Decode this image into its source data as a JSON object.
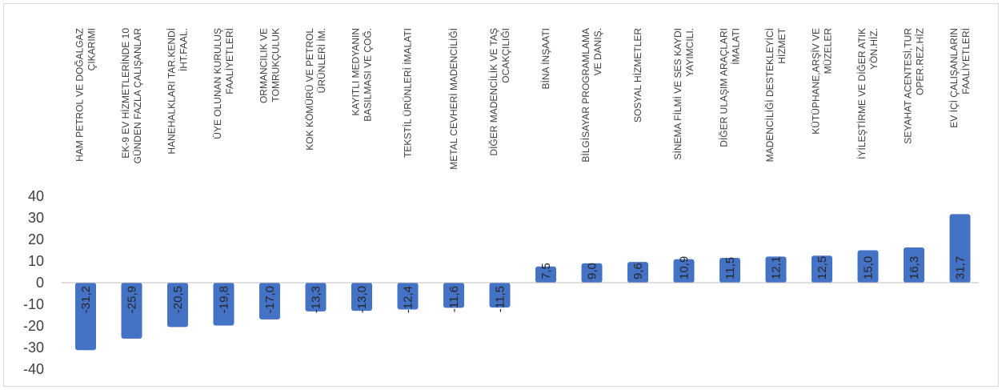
{
  "chart_data": {
    "type": "bar",
    "title": "",
    "xlabel": "",
    "ylabel": "",
    "ylim": [
      -40,
      40
    ],
    "yticks": [
      40,
      30,
      20,
      10,
      0,
      -10,
      -20,
      -30,
      -40
    ],
    "grid": false,
    "legend": "none",
    "bar_color": "#4472c4",
    "categories": [
      [
        "HAM PETROL VE DOĞALGAZ",
        "ÇIKARIMI"
      ],
      [
        "EK-9 EV HİZMETLERİNDE 10",
        "GÜNDEN FAZLA ÇALIŞANLAR"
      ],
      [
        "HANEHALKLARI TAR.KENDİ",
        "İHT.FAAL."
      ],
      [
        "ÜYE OLUNAN KURULUŞ",
        "FAALİYETLERİ"
      ],
      [
        "ORMANCILIK VE",
        "TOMRUKÇULUK"
      ],
      [
        "KOK KÖMÜRÜ VE PETROL",
        "ÜRÜNLERİ İM."
      ],
      [
        "KAYITLI MEDYANIN",
        "BASILMASI VE ÇOĞ."
      ],
      [
        "TEKSTİL ÜRÜNLERİ İMALATI"
      ],
      [
        "METAL CEVHERİ MADENCİLİĞİ"
      ],
      [
        "DİĞER MADENCİLİK VE TAŞ",
        "OCAKÇILIĞI"
      ],
      [
        "BİNA İNŞAATI"
      ],
      [
        "BİLGİSAYAR PROGRAMLAMA",
        "VE DANIŞ."
      ],
      [
        "SOSYAL HİZMETLER"
      ],
      [
        "SİNEMA FİLMİ VE SES KAYDI",
        "YAYIMCILI."
      ],
      [
        "DİĞER ULAŞIM ARAÇLARI",
        "İMALATI"
      ],
      [
        "MADENCİLİĞİ DESTEKLEYİCİ",
        "HİZMET"
      ],
      [
        "KÜTÜPHANE,ARŞİV VE",
        "MÜZELER"
      ],
      [
        "İYİLEŞTİRME VE DİĞER ATIK",
        "YÖN.HİZ."
      ],
      [
        "SEYAHAT ACENTESİ,TUR",
        "OPER.REZ.HİZ"
      ],
      [
        "EV İÇİ ÇALIŞANLARIN",
        "FAALİYETLERİ"
      ]
    ],
    "values": [
      -31.2,
      -25.9,
      -20.5,
      -19.8,
      -17.0,
      -13.3,
      -13.0,
      -12.4,
      -11.6,
      -11.5,
      7.5,
      9.0,
      9.6,
      10.9,
      11.5,
      12.1,
      12.5,
      15.0,
      16.3,
      31.7
    ],
    "data_labels": [
      "-31,2",
      "-25,9",
      "-20,5",
      "-19,8",
      "-17,0",
      "-13,3",
      "-13,0",
      "-12,4",
      "-11,6",
      "-11,5",
      "7,5",
      "9,0",
      "9,6",
      "10,9",
      "11,5",
      "12,1",
      "12,5",
      "15,0",
      "16,3",
      "31,7"
    ]
  }
}
